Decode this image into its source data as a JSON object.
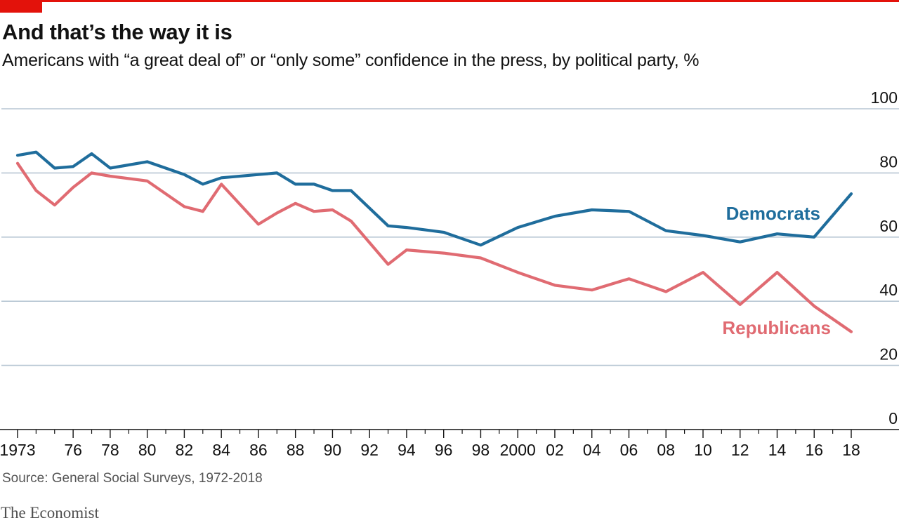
{
  "title": "And that’s the way it is",
  "subtitle": "Americans with “a great deal of” or “only some” confidence in the press, by political party, %",
  "source": "Source: General Social Surveys, 1972-2018",
  "brand": "The Economist",
  "colors": {
    "accent": "#e3120b",
    "democrats": "#1f6d9c",
    "republicans": "#e06b72",
    "grid": "#b7c6d3"
  },
  "chart_data": {
    "type": "line",
    "ylim": [
      0,
      100
    ],
    "yticks": [
      0,
      20,
      40,
      60,
      80,
      100
    ],
    "xlim": [
      1972.5,
      2019
    ],
    "xticks": [
      {
        "year": 1973,
        "label": "1973"
      },
      {
        "year": 1976,
        "label": "76"
      },
      {
        "year": 1978,
        "label": "78"
      },
      {
        "year": 1980,
        "label": "80"
      },
      {
        "year": 1982,
        "label": "82"
      },
      {
        "year": 1984,
        "label": "84"
      },
      {
        "year": 1986,
        "label": "86"
      },
      {
        "year": 1988,
        "label": "88"
      },
      {
        "year": 1990,
        "label": "90"
      },
      {
        "year": 1992,
        "label": "92"
      },
      {
        "year": 1994,
        "label": "94"
      },
      {
        "year": 1996,
        "label": "96"
      },
      {
        "year": 1998,
        "label": "98"
      },
      {
        "year": 2000,
        "label": "2000"
      },
      {
        "year": 2002,
        "label": "02"
      },
      {
        "year": 2004,
        "label": "04"
      },
      {
        "year": 2006,
        "label": "06"
      },
      {
        "year": 2008,
        "label": "08"
      },
      {
        "year": 2010,
        "label": "10"
      },
      {
        "year": 2012,
        "label": "12"
      },
      {
        "year": 2014,
        "label": "14"
      },
      {
        "year": 2016,
        "label": "16"
      },
      {
        "year": 2018,
        "label": "18"
      }
    ],
    "minor_ticks": [
      1974,
      1975,
      1977,
      1979,
      1981,
      1983,
      1985,
      1987,
      1989,
      1991,
      1993,
      1995,
      1997,
      1999,
      2001,
      2003,
      2005,
      2007,
      2009,
      2011,
      2013,
      2015,
      2017
    ],
    "series": [
      {
        "name": "Democrats",
        "color": "#1f6d9c",
        "x": [
          1973,
          1974,
          1975,
          1976,
          1977,
          1978,
          1980,
          1982,
          1983,
          1984,
          1986,
          1987,
          1988,
          1989,
          1990,
          1991,
          1993,
          1994,
          1996,
          1998,
          2000,
          2002,
          2004,
          2006,
          2008,
          2010,
          2012,
          2014,
          2016,
          2018
        ],
        "y": [
          85.5,
          86.5,
          81.5,
          82,
          86,
          81.5,
          83.5,
          79.5,
          76.5,
          78.5,
          79.5,
          80,
          76.5,
          76.5,
          74.5,
          74.5,
          63.5,
          63,
          61.5,
          57.5,
          63,
          66.5,
          68.5,
          68,
          62,
          60.5,
          58.5,
          61,
          60,
          73.5
        ]
      },
      {
        "name": "Republicans",
        "color": "#e06b72",
        "x": [
          1973,
          1974,
          1975,
          1976,
          1977,
          1978,
          1980,
          1982,
          1983,
          1984,
          1986,
          1987,
          1988,
          1989,
          1990,
          1991,
          1993,
          1994,
          1996,
          1998,
          2000,
          2002,
          2004,
          2006,
          2008,
          2010,
          2012,
          2014,
          2016,
          2018
        ],
        "y": [
          83,
          74.5,
          70,
          75.5,
          80,
          79,
          77.5,
          69.5,
          68,
          76.5,
          64,
          67.5,
          70.5,
          68,
          68.5,
          65,
          51.5,
          56,
          55,
          53.5,
          49,
          45,
          43.5,
          47,
          43,
          49,
          39,
          49,
          38.5,
          30.5
        ]
      }
    ]
  }
}
